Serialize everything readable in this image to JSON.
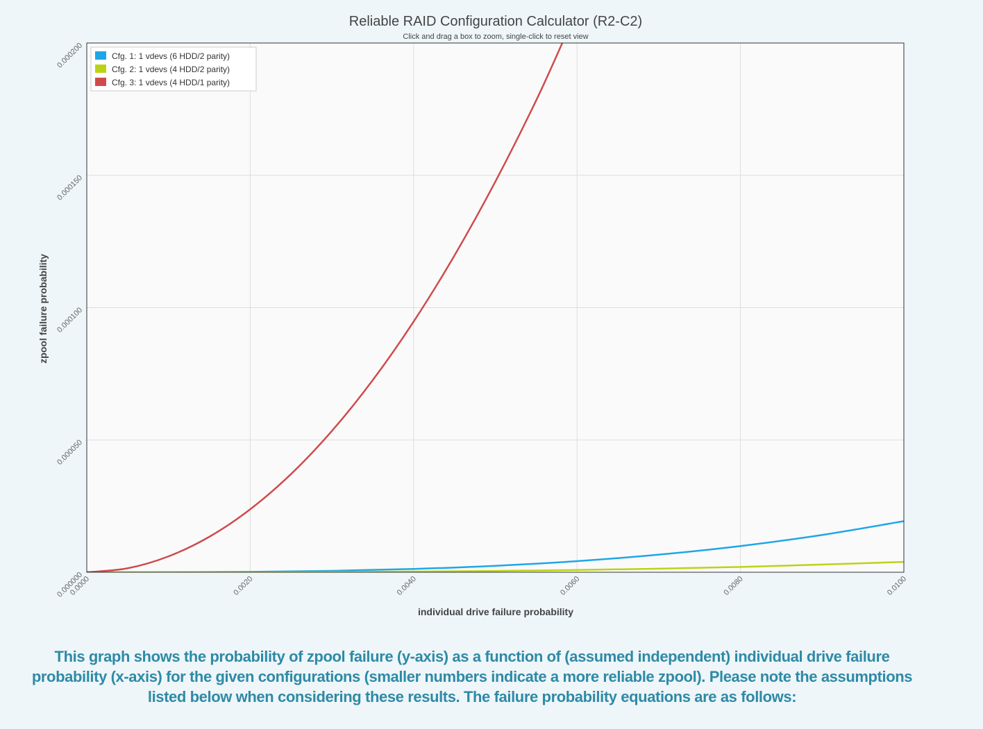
{
  "chart_data": {
    "type": "line",
    "title": "Reliable RAID Configuration Calculator (R2-C2)",
    "subtitle": "Click and drag a box to zoom, single-click to reset view",
    "xlabel": "individual drive failure probability",
    "ylabel": "zpool failure probability",
    "xlim": [
      0,
      0.01
    ],
    "ylim": [
      0,
      0.0002
    ],
    "x_ticks": [
      "0.0000",
      "0.0020",
      "0.0040",
      "0.0060",
      "0.0080",
      "0.0100"
    ],
    "y_ticks": [
      "0.000000",
      "0.000050",
      "0.000100",
      "0.000150",
      "0.000200"
    ],
    "grid": true,
    "legend_position": "top-left",
    "series": [
      {
        "name": "Cfg. 1: 1 vdevs (6 HDD/2 parity)",
        "color": "#1ea6e8",
        "x": [
          0,
          0.001,
          0.002,
          0.003,
          0.004,
          0.005,
          0.006,
          0.007,
          0.008,
          0.009,
          0.01
        ],
        "y": [
          0,
          2e-08,
          1.6e-07,
          5.3e-07,
          1.25e-06,
          2.43e-06,
          4.2e-06,
          6.65e-06,
          9.9e-06,
          1.41e-05,
          1.93e-05
        ]
      },
      {
        "name": "Cfg. 2: 1 vdevs (4 HDD/2 parity)",
        "color": "#bcd315",
        "x": [
          0,
          0.001,
          0.002,
          0.003,
          0.004,
          0.005,
          0.006,
          0.007,
          0.008,
          0.009,
          0.01
        ],
        "y": [
          0,
          4e-09,
          3e-08,
          1e-07,
          2.5e-07,
          4.9e-07,
          8.5e-07,
          1.35e-06,
          2e-06,
          2.9e-06,
          3.9e-06
        ]
      },
      {
        "name": "Cfg. 3: 1 vdevs (4 HDD/1 parity)",
        "color": "#cf4b4b",
        "x": [
          0,
          0.0005,
          0.001,
          0.0015,
          0.002,
          0.0025,
          0.003,
          0.0035,
          0.004,
          0.0045,
          0.005,
          0.0055,
          0.00582
        ],
        "y": [
          0,
          1.5e-06,
          6e-06,
          1.34e-05,
          2.38e-05,
          3.71e-05,
          5.34e-05,
          7.26e-05,
          9.47e-05,
          0.0001197,
          0.0001476,
          0.0001783,
          0.0002
        ]
      }
    ]
  },
  "caption": "This graph shows the probability of zpool failure (y-axis) as a function of (assumed independent) individual drive failure probability (x-axis) for the given configurations (smaller numbers indicate a more reliable zpool). Please note the assumptions listed below when considering these results. The failure probability equations are as follows:"
}
